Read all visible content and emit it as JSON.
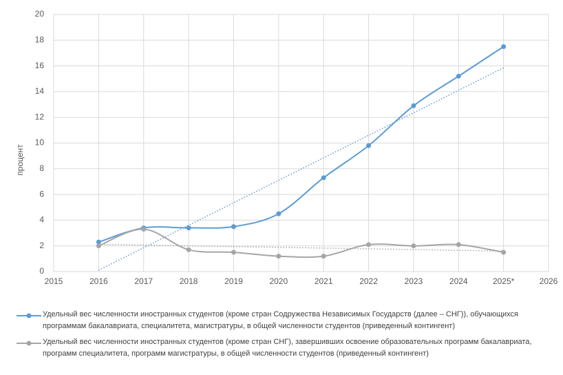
{
  "chart_data": {
    "type": "line",
    "y_label": "процент",
    "x": [
      2016,
      2017,
      2018,
      2019,
      2020,
      2021,
      2022,
      2023,
      2024,
      2025
    ],
    "xlim": [
      2015,
      2026
    ],
    "xticks": [
      2015,
      2016,
      2017,
      2018,
      2019,
      2020,
      2021,
      2022,
      2023,
      2024,
      {
        "value": 2025,
        "label": "2025*"
      },
      2026
    ],
    "ylim": [
      0,
      20
    ],
    "yticks": [
      0,
      2,
      4,
      6,
      8,
      10,
      12,
      14,
      16,
      18,
      20
    ],
    "grid": true,
    "smooth": true,
    "trendline": true,
    "legend": "bottom",
    "series": [
      {
        "name": "Удельный вес численности иностранных студентов (кроме стран Содружества Независимых Государств (далее – СНГ)), обучающихся программам бакалавриата, специалитета, магистратуры, в общей численности студентов (приведенный контингент)",
        "color": "#5b9bd5",
        "values": [
          2.3,
          3.4,
          3.4,
          3.5,
          4.5,
          7.3,
          9.8,
          12.9,
          15.2,
          17.5
        ]
      },
      {
        "name": "Удельный вес численности иностранных студентов (кроме стран СНГ), завершивших освоение образовательных программ бакалавриата, программ специалитета, программ магистратуры, в общей численности студентов (приведенный контингент)",
        "color": "#a5a5a5",
        "values": [
          2.0,
          3.3,
          1.7,
          1.5,
          1.2,
          1.2,
          2.1,
          2.0,
          2.1,
          1.5
        ]
      }
    ]
  }
}
